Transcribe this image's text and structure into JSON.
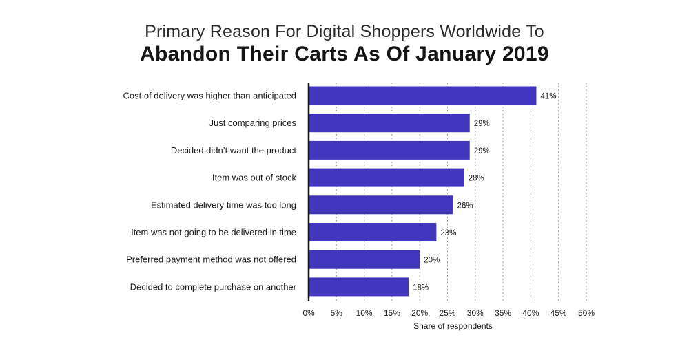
{
  "chart_data": {
    "type": "bar",
    "orientation": "horizontal",
    "title": "Primary Reason For Digital Shoppers Worldwide To",
    "subtitle": "Abandon Their Carts As Of January 2019",
    "categories": [
      "Cost of delivery was higher than anticipated",
      "Just comparing prices",
      "Decided didn’t want the product",
      "Item was out of stock",
      "Estimated delivery time was too long",
      "Item was not going to be delivered in time",
      "Preferred payment method was not offered",
      "Decided to complete purchase on another"
    ],
    "values": [
      41,
      29,
      29,
      28,
      26,
      23,
      20,
      18
    ],
    "value_labels": [
      "41%",
      "29%",
      "29%",
      "28%",
      "26%",
      "23%",
      "20%",
      "18%"
    ],
    "xlabel": "Share of respondents",
    "ylabel": "",
    "xlim": [
      0,
      50
    ],
    "xticks": [
      0,
      5,
      10,
      15,
      20,
      25,
      30,
      35,
      40,
      45,
      50
    ],
    "xtick_labels": [
      "0%",
      "5%",
      "10%",
      "15%",
      "20%",
      "25%",
      "30%",
      "35%",
      "40%",
      "45%",
      "50%"
    ],
    "grid": "vertical dotted",
    "bar_color": "#4236bf",
    "axis_color": "#111111",
    "grid_color": "#9a9a9a"
  }
}
